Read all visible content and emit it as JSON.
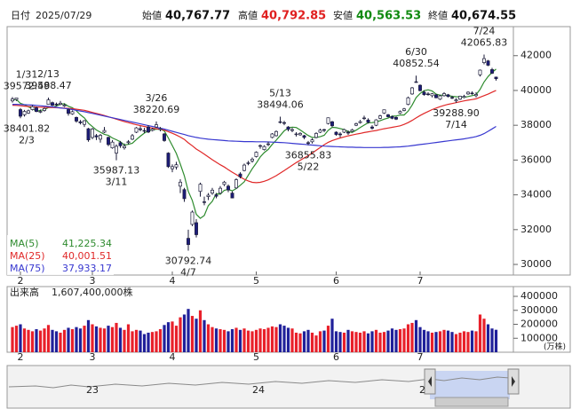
{
  "chart_data": {
    "type": "candlestick",
    "header": {
      "date_label": "日付",
      "date": "2025/07/29",
      "items": [
        {
          "label": "始値",
          "value": "40,767.77",
          "color": "#111111"
        },
        {
          "label": "高値",
          "value": "40,792.85",
          "color": "#e02020"
        },
        {
          "label": "安値",
          "value": "40,563.53",
          "color": "#108a10"
        },
        {
          "label": "終値",
          "value": "40,674.55",
          "color": "#111111"
        }
      ]
    },
    "categories": [
      null,
      null,
      "2",
      null,
      null,
      null,
      null,
      null,
      null,
      null,
      null,
      null,
      null,
      null,
      null,
      null,
      null,
      null,
      null,
      null,
      "3",
      null,
      null,
      null,
      null,
      null,
      null,
      null,
      null,
      null,
      null,
      null,
      null,
      null,
      null,
      null,
      null,
      null,
      null,
      null,
      "4",
      null,
      null,
      null,
      null,
      null,
      null,
      null,
      null,
      null,
      null,
      null,
      null,
      null,
      null,
      null,
      null,
      null,
      null,
      null,
      null,
      "5",
      null,
      null,
      null,
      null,
      null,
      null,
      null,
      null,
      null,
      null,
      null,
      null,
      null,
      null,
      null,
      null,
      null,
      null,
      null,
      "6",
      null,
      null,
      null,
      null,
      null,
      null,
      null,
      null,
      null,
      null,
      null,
      null,
      null,
      null,
      null,
      null,
      null,
      null,
      null,
      null,
      "7",
      null,
      null,
      null,
      null,
      null,
      null,
      null,
      null,
      null,
      null,
      null,
      null,
      null,
      null,
      null,
      null,
      null,
      null,
      null
    ],
    "open": [
      39400,
      39480,
      38900,
      38600,
      38700,
      38900,
      39000,
      38750,
      38850,
      39200,
      39300,
      39220,
      39200,
      39100,
      38900,
      38650,
      38450,
      38200,
      38050,
      37800,
      37300,
      37400,
      37200,
      37600,
      37300,
      36700,
      36400,
      37000,
      36700,
      37000,
      37200,
      37600,
      37800,
      37700,
      37900,
      37700,
      37900,
      37750,
      37500,
      36400,
      35500,
      35600,
      34500,
      34300,
      31500,
      32300,
      32400,
      34200,
      33600,
      33900,
      34100,
      34000,
      34100,
      34600,
      34500,
      34100,
      34400,
      35200,
      35400,
      35800,
      35950,
      36200,
      36800,
      36600,
      36900,
      37300,
      37400,
      38200,
      38150,
      37900,
      37700,
      37500,
      37450,
      37400,
      37000,
      37050,
      37300,
      37600,
      37750,
      38100,
      38200,
      37600,
      37500,
      37600,
      37600,
      37650,
      38000,
      38150,
      38400,
      38300,
      37900,
      38000,
      38400,
      38700,
      38600,
      38500,
      38450,
      38700,
      38850,
      39200,
      39800,
      40500,
      40300,
      39900,
      39800,
      39700,
      39750,
      39500,
      39700,
      39750,
      39600,
      39400,
      39500,
      39600,
      39800,
      39850,
      39700,
      40900,
      41600,
      41700,
      41200,
      40767.77
    ],
    "high": [
      39620,
      39572.49,
      38990,
      38880,
      38900,
      39150,
      39080,
      38900,
      39020,
      39588.47,
      39360,
      39300,
      39400,
      39250,
      38960,
      38850,
      38500,
      38300,
      38300,
      37850,
      37850,
      37500,
      37500,
      37900,
      37350,
      37150,
      36900,
      37100,
      36950,
      37150,
      37500,
      37900,
      37950,
      37850,
      38000,
      37850,
      38220.69,
      37900,
      37550,
      36450,
      35750,
      35900,
      34900,
      34400,
      32000,
      33100,
      32600,
      34700,
      33900,
      34100,
      34400,
      34100,
      34500,
      34800,
      34600,
      34200,
      34950,
      35300,
      35800,
      35950,
      36150,
      36500,
      36900,
      36850,
      37050,
      37550,
      37700,
      38494.06,
      38250,
      37950,
      37850,
      37600,
      37600,
      37450,
      37100,
      37250,
      37600,
      37800,
      37800,
      38450,
      38250,
      37650,
      37600,
      37800,
      37700,
      37800,
      38150,
      38300,
      38550,
      38400,
      38000,
      38350,
      38600,
      38900,
      38650,
      38550,
      38500,
      38850,
      39000,
      39650,
      40200,
      40852.54,
      40350,
      40000,
      39900,
      39850,
      39800,
      39750,
      39900,
      39800,
      39700,
      39550,
      39700,
      39750,
      39950,
      39950,
      39900,
      41200,
      42065.83,
      41750,
      41300,
      40792.85
    ],
    "low": [
      39300,
      39400,
      38401.82,
      38500,
      38650,
      38850,
      38750,
      38700,
      38780,
      39180,
      39100,
      39100,
      39150,
      39050,
      38550,
      38600,
      38150,
      38050,
      37900,
      37050,
      37200,
      37150,
      37000,
      37550,
      36800,
      36650,
      35987.13,
      36700,
      36600,
      36900,
      37150,
      37550,
      37650,
      37550,
      37550,
      37650,
      37850,
      37650,
      37050,
      35550,
      35300,
      35450,
      34100,
      33600,
      30792.74,
      32200,
      31550,
      33900,
      33400,
      33700,
      34000,
      33800,
      34050,
      34500,
      34150,
      33800,
      34350,
      34950,
      35350,
      35700,
      35850,
      36150,
      36650,
      36550,
      36800,
      37250,
      37350,
      38100,
      38000,
      37650,
      37600,
      37350,
      37400,
      37200,
      36855.83,
      36950,
      37250,
      37550,
      37600,
      38050,
      37900,
      37400,
      37300,
      37550,
      37450,
      37600,
      37950,
      38100,
      38300,
      38100,
      37750,
      37950,
      38350,
      38650,
      38450,
      38350,
      38300,
      38650,
      38800,
      39150,
      39750,
      40450,
      39950,
      39700,
      39700,
      39600,
      39550,
      39450,
      39650,
      39600,
      39500,
      39288.9,
      39450,
      39550,
      39750,
      39750,
      39600,
      40800,
      41500,
      41400,
      40950,
      40563.53
    ],
    "close": [
      39510,
      39570,
      38520,
      38800,
      38830,
      39070,
      38790,
      38800,
      38960,
      39460,
      39150,
      39170,
      39270,
      39160,
      38680,
      38780,
      38240,
      38140,
      38260,
      37160,
      37780,
      37330,
      37420,
      37700,
      36890,
      37030,
      36790,
      36820,
      36790,
      37050,
      37400,
      37850,
      37750,
      37680,
      37610,
      37780,
      38030,
      37800,
      37120,
      35620,
      35620,
      35730,
      34730,
      33780,
      31140,
      33010,
      31710,
      34610,
      33590,
      33980,
      34270,
      33920,
      34380,
      34730,
      34280,
      33820,
      34870,
      35040,
      35710,
      35840,
      36050,
      36450,
      36830,
      36780,
      36930,
      37500,
      37640,
      38180,
      38130,
      37760,
      37750,
      37500,
      37530,
      37300,
      36990,
      37160,
      37530,
      37720,
      37720,
      38430,
      37970,
      37470,
      37450,
      37750,
      37550,
      37740,
      38090,
      38210,
      38420,
      38170,
      37830,
      38310,
      38540,
      38890,
      38490,
      38400,
      38350,
      38790,
      38940,
      39580,
      40150,
      40490,
      39990,
      39760,
      39790,
      39810,
      39580,
      39690,
      39820,
      39650,
      39570,
      39460,
      39670,
      39660,
      39900,
      39820,
      39770,
      41170,
      41830,
      41450,
      40990,
      40674.55
    ],
    "up_color": "#ffffff",
    "down_color": "#1c1c7a",
    "candle_edge": "#1c1c3a",
    "ylim": [
      29390,
      43670
    ],
    "yticks": [
      30000,
      32000,
      34000,
      36000,
      38000,
      40000,
      42000
    ],
    "series": [
      {
        "name": "MA(5)",
        "color": "#2e8b2e",
        "legend_value": "41,225.34",
        "values": [
          39450,
          39480,
          39260,
          39180,
          39060,
          38960,
          38800,
          38860,
          38890,
          39020,
          39030,
          39110,
          39200,
          39240,
          39090,
          39010,
          38830,
          38600,
          38420,
          38120,
          37920,
          37730,
          37600,
          37480,
          37420,
          37270,
          37170,
          37050,
          36860,
          36900,
          36970,
          37180,
          37370,
          37550,
          37670,
          37730,
          37770,
          37780,
          37670,
          37270,
          36830,
          36380,
          35770,
          35100,
          34200,
          33680,
          32880,
          32650,
          32810,
          33380,
          33630,
          34070,
          34030,
          34260,
          34310,
          34230,
          34360,
          34550,
          34750,
          35120,
          35500,
          35820,
          36180,
          36430,
          36610,
          36900,
          37140,
          37410,
          37680,
          37840,
          37890,
          37870,
          37730,
          37570,
          37410,
          37300,
          37300,
          37340,
          37420,
          37710,
          37880,
          37860,
          37810,
          37750,
          37630,
          37590,
          37720,
          37870,
          38010,
          38140,
          38150,
          38190,
          38260,
          38350,
          38410,
          38530,
          38530,
          38590,
          38590,
          38810,
          39160,
          39590,
          39830,
          39990,
          40040,
          39970,
          39790,
          39730,
          39740,
          39710,
          39660,
          39640,
          39630,
          39600,
          39650,
          39700,
          39760,
          40060,
          40490,
          40800,
          41040,
          41225.34
        ]
      },
      {
        "name": "MA(25)",
        "color": "#e02828",
        "legend_value": "40,001.51",
        "values": [
          39150,
          39140,
          39120,
          39100,
          39080,
          39070,
          39050,
          39040,
          39030,
          39030,
          39020,
          39010,
          39000,
          38990,
          38970,
          38950,
          38920,
          38890,
          38860,
          38800,
          38740,
          38680,
          38620,
          38560,
          38490,
          38420,
          38350,
          38280,
          38210,
          38150,
          38090,
          38030,
          37980,
          37930,
          37880,
          37840,
          37800,
          37770,
          37720,
          37630,
          37540,
          37440,
          37320,
          37190,
          36990,
          36820,
          36630,
          36490,
          36340,
          36180,
          36020,
          35870,
          35730,
          35600,
          35450,
          35300,
          35170,
          35020,
          34900,
          34800,
          34720,
          34700,
          34720,
          34780,
          34860,
          34980,
          35100,
          35250,
          35400,
          35550,
          35700,
          35850,
          35990,
          36120,
          36250,
          36400,
          36560,
          36720,
          36880,
          37020,
          37120,
          37200,
          37270,
          37330,
          37390,
          37440,
          37490,
          37530,
          37580,
          37620,
          37660,
          37700,
          37750,
          37800,
          37840,
          37880,
          37920,
          37970,
          38050,
          38150,
          38280,
          38420,
          38560,
          38680,
          38790,
          38900,
          38990,
          39070,
          39140,
          39200,
          39250,
          39300,
          39350,
          39400,
          39440,
          39480,
          39520,
          39610,
          39700,
          39790,
          39900,
          40001.51
        ]
      },
      {
        "name": "MA(75)",
        "color": "#3838d0",
        "legend_value": "37,933.17",
        "values": [
          39200,
          39200,
          39190,
          39180,
          39170,
          39160,
          39140,
          39120,
          39100,
          39080,
          39060,
          39030,
          39000,
          38970,
          38940,
          38900,
          38860,
          38820,
          38780,
          38730,
          38680,
          38630,
          38580,
          38530,
          38480,
          38430,
          38380,
          38330,
          38280,
          38230,
          38180,
          38130,
          38080,
          38030,
          37980,
          37930,
          37880,
          37830,
          37780,
          37720,
          37650,
          37590,
          37530,
          37470,
          37400,
          37350,
          37300,
          37260,
          37230,
          37200,
          37180,
          37160,
          37140,
          37120,
          37100,
          37090,
          37080,
          37070,
          37060,
          37060,
          37060,
          37050,
          37050,
          37050,
          37040,
          37030,
          37020,
          37010,
          37000,
          36980,
          36960,
          36940,
          36920,
          36900,
          36880,
          36860,
          36840,
          36820,
          36800,
          36790,
          36780,
          36770,
          36760,
          36750,
          36740,
          36740,
          36730,
          36730,
          36720,
          36720,
          36720,
          36720,
          36720,
          36730,
          36730,
          36740,
          36750,
          36760,
          36780,
          36800,
          36830,
          36860,
          36890,
          36920,
          36950,
          36980,
          37010,
          37040,
          37070,
          37100,
          37130,
          37160,
          37190,
          37220,
          37260,
          37300,
          37350,
          37420,
          37520,
          37650,
          37790,
          37933.17
        ]
      }
    ],
    "annotations": [
      {
        "date": "1/31",
        "value": 39572.49
      },
      {
        "date": "2/13",
        "value": 39588.47
      },
      {
        "date": "2/3",
        "value": 38401.82
      },
      {
        "date": "3/11",
        "value": 35987.13
      },
      {
        "date": "3/26",
        "value": 38220.69
      },
      {
        "date": "4/7",
        "value": 30792.74
      },
      {
        "date": "5/13",
        "value": 38494.06
      },
      {
        "date": "5/22",
        "value": 36855.83
      },
      {
        "date": "6/30",
        "value": 40852.54
      },
      {
        "date": "7/14",
        "value": {
          "value": 39288.9,
          "label": "39288.90"
        }
      },
      {
        "date": "7/24",
        "value": 42065.83
      }
    ],
    "volume": {
      "label": "出来高",
      "total_label": "1,607,400,000株",
      "unit_label": "(万株)",
      "up_color": "#e8202a",
      "down_color": "#20209a",
      "ylim": [
        0,
        470000
      ],
      "yticks": [
        100000,
        200000,
        300000,
        400000
      ],
      "values": [
        180000,
        190000,
        200000,
        170000,
        160000,
        150000,
        165000,
        155000,
        170000,
        195000,
        160000,
        150000,
        140000,
        160000,
        175000,
        165000,
        180000,
        170000,
        190000,
        230000,
        200000,
        185000,
        175000,
        170000,
        190000,
        180000,
        210000,
        175000,
        160000,
        200000,
        150000,
        160000,
        155000,
        130000,
        140000,
        145000,
        150000,
        165000,
        195000,
        215000,
        220000,
        190000,
        250000,
        270000,
        310000,
        260000,
        240000,
        300000,
        230000,
        200000,
        180000,
        170000,
        165000,
        160000,
        150000,
        165000,
        175000,
        160000,
        170000,
        155000,
        150000,
        160000,
        170000,
        165000,
        175000,
        185000,
        180000,
        200000,
        190000,
        175000,
        170000,
        140000,
        135000,
        150000,
        160000,
        140000,
        120000,
        150000,
        155000,
        190000,
        240000,
        150000,
        145000,
        140000,
        160000,
        150000,
        145000,
        140000,
        150000,
        135000,
        150000,
        160000,
        140000,
        145000,
        155000,
        170000,
        160000,
        165000,
        170000,
        200000,
        210000,
        230000,
        180000,
        160000,
        150000,
        140000,
        145000,
        150000,
        160000,
        155000,
        145000,
        130000,
        140000,
        150000,
        145000,
        155000,
        150000,
        270000,
        240000,
        200000,
        170000,
        160740
      ]
    },
    "navigator": {
      "labels": [
        "23",
        "24",
        "2"
      ]
    }
  }
}
